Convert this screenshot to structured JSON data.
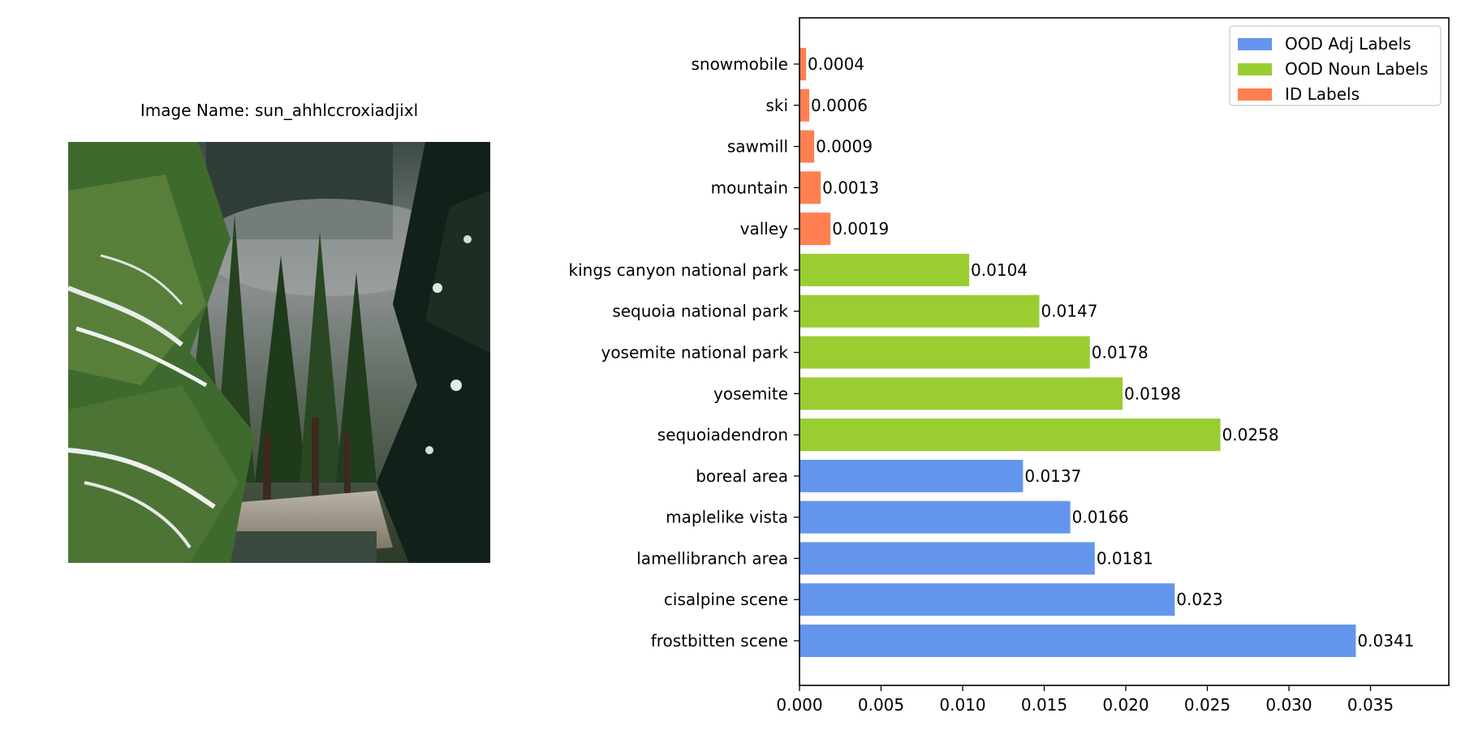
{
  "image_panel": {
    "title": "Image Name: sun_ahhlccroxiadjixl",
    "photo_icon": "forest-snow-scene"
  },
  "chart_data": {
    "type": "bar",
    "orientation": "horizontal",
    "title": "",
    "xlabel": "",
    "ylabel": "",
    "xlim": [
      0,
      0.0398
    ],
    "xticks": [
      0.0,
      0.005,
      0.01,
      0.015,
      0.02,
      0.025,
      0.03,
      0.035
    ],
    "xtick_labels": [
      "0.000",
      "0.005",
      "0.010",
      "0.015",
      "0.020",
      "0.025",
      "0.030",
      "0.035"
    ],
    "grid": false,
    "legend_position": "top-right",
    "series": [
      {
        "name": "OOD Adj Labels",
        "color": "#6495ED"
      },
      {
        "name": "OOD Noun Labels",
        "color": "#9ACD32"
      },
      {
        "name": "ID Labels",
        "color": "#FF7F50"
      }
    ],
    "bars": [
      {
        "label": "frostbitten scene",
        "value": 0.0341,
        "value_label": "0.0341",
        "series": 0
      },
      {
        "label": "cisalpine scene",
        "value": 0.023,
        "value_label": "0.023",
        "series": 0
      },
      {
        "label": "lamellibranch area",
        "value": 0.0181,
        "value_label": "0.0181",
        "series": 0
      },
      {
        "label": "maplelike vista",
        "value": 0.0166,
        "value_label": "0.0166",
        "series": 0
      },
      {
        "label": "boreal area",
        "value": 0.0137,
        "value_label": "0.0137",
        "series": 0
      },
      {
        "label": "sequoiadendron",
        "value": 0.0258,
        "value_label": "0.0258",
        "series": 1
      },
      {
        "label": "yosemite",
        "value": 0.0198,
        "value_label": "0.0198",
        "series": 1
      },
      {
        "label": "yosemite national park",
        "value": 0.0178,
        "value_label": "0.0178",
        "series": 1
      },
      {
        "label": "sequoia national park",
        "value": 0.0147,
        "value_label": "0.0147",
        "series": 1
      },
      {
        "label": "kings canyon national park",
        "value": 0.0104,
        "value_label": "0.0104",
        "series": 1
      },
      {
        "label": "valley",
        "value": 0.0019,
        "value_label": "0.0019",
        "series": 2
      },
      {
        "label": "mountain",
        "value": 0.0013,
        "value_label": "0.0013",
        "series": 2
      },
      {
        "label": "sawmill",
        "value": 0.0009,
        "value_label": "0.0009",
        "series": 2
      },
      {
        "label": "ski",
        "value": 0.0006,
        "value_label": "0.0006",
        "series": 2
      },
      {
        "label": "snowmobile",
        "value": 0.0004,
        "value_label": "0.0004",
        "series": 2
      }
    ]
  }
}
